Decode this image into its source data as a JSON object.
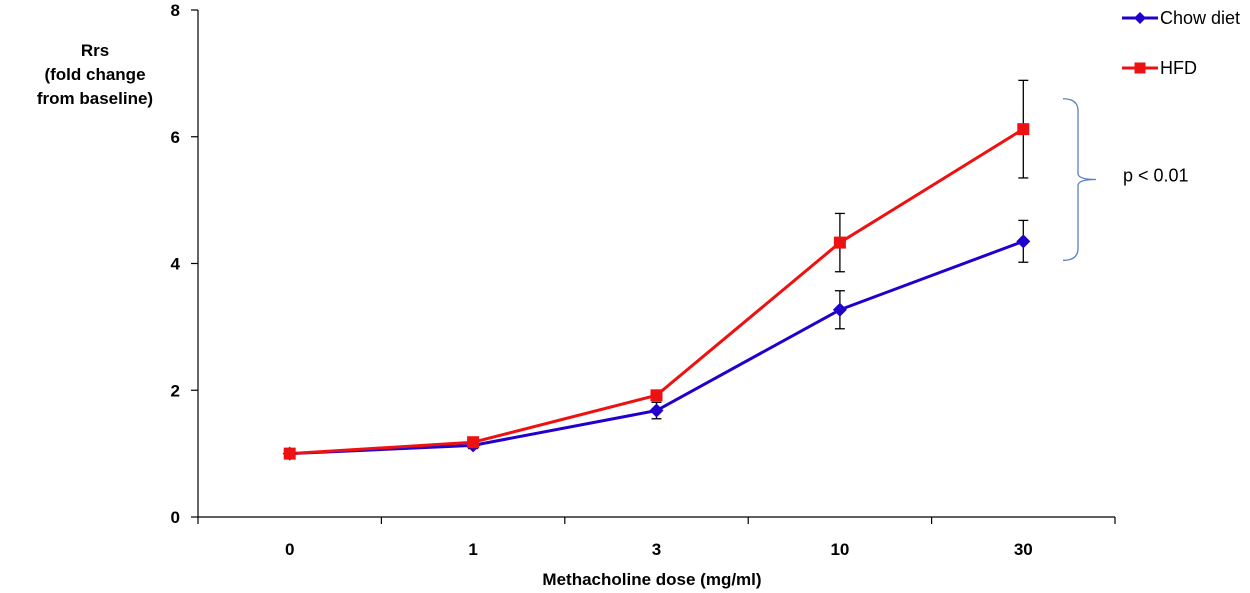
{
  "chart_data": {
    "type": "line",
    "categories": [
      "0",
      "1",
      "3",
      "10",
      "30"
    ],
    "xlabel": "Methacholine dose (mg/ml)",
    "ylabel_lines": [
      "Rrs",
      "(fold change",
      "from baseline)"
    ],
    "ylim": [
      0,
      8
    ],
    "yticks": [
      0,
      2,
      4,
      6,
      8
    ],
    "grid": false,
    "legend_position": "top-right",
    "series": [
      {
        "name": "Chow diet",
        "color": "#2200cc",
        "marker": "diamond",
        "values": [
          1.0,
          1.13,
          1.68,
          3.27,
          4.35
        ],
        "errors": [
          0.0,
          0.05,
          0.13,
          0.3,
          0.33
        ]
      },
      {
        "name": "HFD",
        "color": "#ee1111",
        "marker": "square",
        "values": [
          1.0,
          1.18,
          1.92,
          4.33,
          6.12
        ],
        "errors": [
          0.0,
          0.05,
          0.08,
          0.46,
          0.77
        ]
      }
    ],
    "annotation": {
      "text": "p < 0.01",
      "bracket_from": 4.05,
      "bracket_to": 6.6,
      "bracket_color": "#5b7fc4"
    }
  }
}
